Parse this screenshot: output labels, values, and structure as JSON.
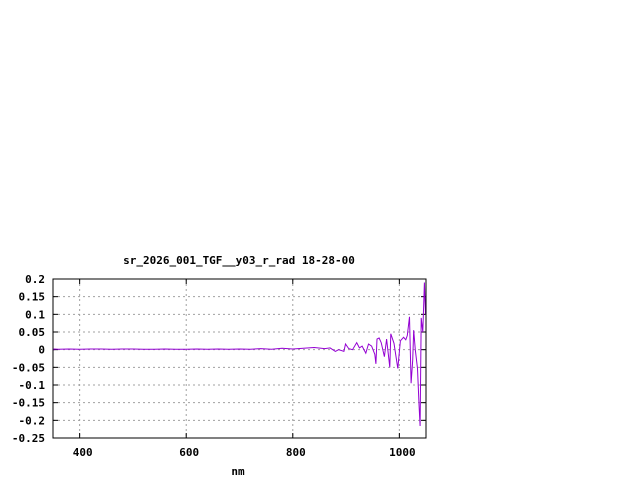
{
  "chart_data": {
    "type": "line",
    "title": "sr_2026_001_TGF__y03_r_rad 18-28-00",
    "xlabel": "nm",
    "ylabel": "",
    "xlim": [
      350,
      1050
    ],
    "ylim": [
      -0.25,
      0.2
    ],
    "xticks": [
      400,
      600,
      800,
      1000
    ],
    "xtick_labels": [
      "400",
      "600",
      "800",
      "1000"
    ],
    "yticks": [
      0.2,
      0.15,
      0.1,
      0.05,
      0,
      -0.05,
      -0.1,
      -0.15,
      -0.2,
      -0.25
    ],
    "ytick_labels": [
      "0.2",
      "0.15",
      "0.1",
      "0.05",
      "0",
      "-0.05",
      "-0.1",
      "-0.15",
      "-0.2",
      "-0.25"
    ],
    "grid": true,
    "legend": "none",
    "series": [
      {
        "color": "#9400d3",
        "x": [
          350,
          352,
          360,
          380,
          400,
          420,
          440,
          460,
          480,
          500,
          520,
          540,
          560,
          580,
          600,
          620,
          640,
          660,
          680,
          700,
          720,
          740,
          760,
          780,
          800,
          820,
          840,
          860,
          870,
          880,
          886,
          896,
          899,
          905,
          912,
          920,
          925,
          930,
          937,
          942,
          948,
          954,
          956,
          958,
          962,
          966,
          972,
          976,
          982,
          984,
          990,
          997,
          1002,
          1008,
          1012,
          1015,
          1019,
          1022,
          1025,
          1027,
          1030,
          1034,
          1037,
          1039,
          1041,
          1044,
          1047,
          1049
        ],
        "y": [
          -0.002,
          0.002,
          0.001,
          0.002,
          0.001,
          0.002,
          0.002,
          0.001,
          0.002,
          0.002,
          0.001,
          0.001,
          0.002,
          0.001,
          0.001,
          0.002,
          0.001,
          0.002,
          0.001,
          0.002,
          0.001,
          0.003,
          0.001,
          0.004,
          0.002,
          0.004,
          0.006,
          0.003,
          0.005,
          -0.005,
          0.0,
          -0.005,
          0.016,
          0.003,
          0.0,
          0.02,
          0.005,
          0.01,
          -0.01,
          0.016,
          0.01,
          -0.013,
          -0.04,
          0.03,
          0.033,
          0.02,
          -0.02,
          0.03,
          -0.05,
          0.045,
          0.018,
          -0.053,
          0.025,
          0.035,
          0.028,
          0.04,
          0.093,
          -0.095,
          -0.03,
          0.055,
          0.0,
          -0.053,
          -0.16,
          -0.216,
          0.09,
          0.05,
          0.19,
          0.1
        ]
      }
    ]
  }
}
